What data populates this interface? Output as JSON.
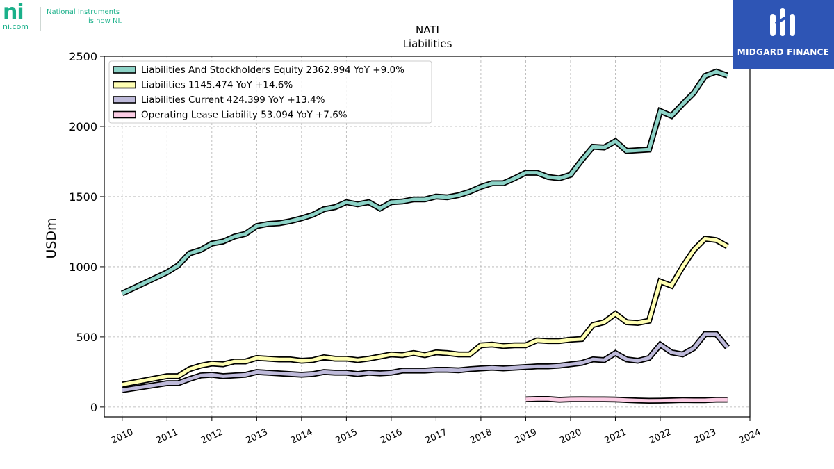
{
  "header_logo": {
    "mark": "ni",
    "domain": "ni.com",
    "tagline_line1": "National Instruments",
    "tagline_line2": "is now NI."
  },
  "brand_badge": {
    "name": "MIDGARD FINANCE",
    "color": "#2e55b5"
  },
  "chart_data": {
    "type": "line",
    "title": "NATI",
    "subtitle": "Liabilities",
    "ylabel": "USDm",
    "xlabel": "",
    "xlim": [
      2009.6,
      2024.0
    ],
    "ylim": [
      -70,
      2500
    ],
    "yticks": [
      0,
      500,
      1000,
      1500,
      2000,
      2500
    ],
    "xticks": [
      2010,
      2011,
      2012,
      2013,
      2014,
      2015,
      2016,
      2017,
      2018,
      2019,
      2020,
      2021,
      2022,
      2023,
      2024
    ],
    "grid": true,
    "legend_position": "top-left",
    "series": [
      {
        "name": "Liabilities And Stockholders Equity",
        "legend": "Liabilities And Stockholders Equity  2362.994 YoY +9.0%",
        "color": "#8dd3c7",
        "points": [
          [
            2010.0,
            810
          ],
          [
            2011.0,
            960
          ],
          [
            2011.25,
            1010
          ],
          [
            2011.5,
            1095
          ],
          [
            2011.75,
            1120
          ],
          [
            2012.0,
            1165
          ],
          [
            2012.25,
            1180
          ],
          [
            2012.5,
            1215
          ],
          [
            2012.75,
            1235
          ],
          [
            2013.0,
            1290
          ],
          [
            2013.25,
            1305
          ],
          [
            2013.5,
            1310
          ],
          [
            2013.75,
            1325
          ],
          [
            2014.0,
            1345
          ],
          [
            2014.25,
            1370
          ],
          [
            2014.5,
            1410
          ],
          [
            2014.75,
            1425
          ],
          [
            2015.0,
            1460
          ],
          [
            2015.25,
            1445
          ],
          [
            2015.5,
            1460
          ],
          [
            2015.75,
            1415
          ],
          [
            2016.0,
            1460
          ],
          [
            2016.25,
            1465
          ],
          [
            2016.5,
            1480
          ],
          [
            2016.75,
            1480
          ],
          [
            2017.0,
            1500
          ],
          [
            2017.25,
            1495
          ],
          [
            2017.5,
            1510
          ],
          [
            2017.75,
            1535
          ],
          [
            2018.0,
            1570
          ],
          [
            2018.25,
            1595
          ],
          [
            2018.5,
            1595
          ],
          [
            2018.75,
            1630
          ],
          [
            2019.0,
            1670
          ],
          [
            2019.25,
            1670
          ],
          [
            2019.5,
            1640
          ],
          [
            2019.75,
            1630
          ],
          [
            2020.0,
            1655
          ],
          [
            2020.25,
            1760
          ],
          [
            2020.5,
            1855
          ],
          [
            2020.75,
            1850
          ],
          [
            2021.0,
            1895
          ],
          [
            2021.25,
            1825
          ],
          [
            2021.5,
            1830
          ],
          [
            2021.75,
            1835
          ],
          [
            2022.0,
            2110
          ],
          [
            2022.25,
            2075
          ],
          [
            2022.5,
            2160
          ],
          [
            2022.75,
            2240
          ],
          [
            2023.0,
            2360
          ],
          [
            2023.25,
            2390
          ],
          [
            2023.5,
            2363
          ]
        ]
      },
      {
        "name": "Liabilities",
        "legend": "Liabilities  1145.474 YoY +14.6%",
        "color": "#ffffb3",
        "points": [
          [
            2010.0,
            160
          ],
          [
            2011.0,
            220
          ],
          [
            2011.25,
            220
          ],
          [
            2011.5,
            270
          ],
          [
            2011.75,
            295
          ],
          [
            2012.0,
            310
          ],
          [
            2012.25,
            305
          ],
          [
            2012.5,
            325
          ],
          [
            2012.75,
            325
          ],
          [
            2013.0,
            350
          ],
          [
            2013.25,
            345
          ],
          [
            2013.5,
            340
          ],
          [
            2013.75,
            340
          ],
          [
            2014.0,
            330
          ],
          [
            2014.25,
            335
          ],
          [
            2014.5,
            355
          ],
          [
            2014.75,
            345
          ],
          [
            2015.0,
            345
          ],
          [
            2015.25,
            335
          ],
          [
            2015.5,
            345
          ],
          [
            2015.75,
            360
          ],
          [
            2016.0,
            375
          ],
          [
            2016.25,
            370
          ],
          [
            2016.5,
            385
          ],
          [
            2016.75,
            370
          ],
          [
            2017.0,
            390
          ],
          [
            2017.25,
            385
          ],
          [
            2017.5,
            375
          ],
          [
            2017.75,
            375
          ],
          [
            2018.0,
            440
          ],
          [
            2018.25,
            445
          ],
          [
            2018.5,
            435
          ],
          [
            2018.75,
            440
          ],
          [
            2019.0,
            440
          ],
          [
            2019.25,
            475
          ],
          [
            2019.5,
            470
          ],
          [
            2019.75,
            470
          ],
          [
            2020.0,
            480
          ],
          [
            2020.25,
            485
          ],
          [
            2020.5,
            585
          ],
          [
            2020.75,
            605
          ],
          [
            2021.0,
            665
          ],
          [
            2021.25,
            605
          ],
          [
            2021.5,
            600
          ],
          [
            2021.75,
            615
          ],
          [
            2022.0,
            895
          ],
          [
            2022.25,
            865
          ],
          [
            2022.5,
            1000
          ],
          [
            2022.75,
            1120
          ],
          [
            2023.0,
            1200
          ],
          [
            2023.25,
            1190
          ],
          [
            2023.5,
            1145
          ]
        ]
      },
      {
        "name": "Liabilities Current",
        "legend": "Liabilities Current  424.399 YoY +13.4%",
        "color": "#bebada",
        "points": [
          [
            2010.0,
            120
          ],
          [
            2011.0,
            170
          ],
          [
            2011.25,
            170
          ],
          [
            2011.5,
            200
          ],
          [
            2011.75,
            225
          ],
          [
            2012.0,
            230
          ],
          [
            2012.25,
            220
          ],
          [
            2012.5,
            225
          ],
          [
            2012.75,
            230
          ],
          [
            2013.0,
            250
          ],
          [
            2013.25,
            245
          ],
          [
            2013.5,
            240
          ],
          [
            2013.75,
            235
          ],
          [
            2014.0,
            230
          ],
          [
            2014.25,
            235
          ],
          [
            2014.5,
            250
          ],
          [
            2014.75,
            245
          ],
          [
            2015.0,
            245
          ],
          [
            2015.25,
            235
          ],
          [
            2015.5,
            245
          ],
          [
            2015.75,
            240
          ],
          [
            2016.0,
            245
          ],
          [
            2016.25,
            260
          ],
          [
            2016.5,
            260
          ],
          [
            2016.75,
            260
          ],
          [
            2017.0,
            265
          ],
          [
            2017.25,
            265
          ],
          [
            2017.5,
            262
          ],
          [
            2017.75,
            270
          ],
          [
            2018.0,
            275
          ],
          [
            2018.25,
            280
          ],
          [
            2018.5,
            275
          ],
          [
            2018.75,
            280
          ],
          [
            2019.0,
            285
          ],
          [
            2019.25,
            290
          ],
          [
            2019.5,
            290
          ],
          [
            2019.75,
            295
          ],
          [
            2020.0,
            305
          ],
          [
            2020.25,
            315
          ],
          [
            2020.5,
            340
          ],
          [
            2020.75,
            335
          ],
          [
            2021.0,
            385
          ],
          [
            2021.25,
            340
          ],
          [
            2021.5,
            330
          ],
          [
            2021.75,
            350
          ],
          [
            2022.0,
            445
          ],
          [
            2022.25,
            390
          ],
          [
            2022.5,
            375
          ],
          [
            2022.75,
            420
          ],
          [
            2023.0,
            520
          ],
          [
            2023.25,
            520
          ],
          [
            2023.5,
            424
          ]
        ]
      },
      {
        "name": "Operating Lease Liability",
        "legend": "Operating Lease Liability  53.094 YoY +7.6%",
        "color": "#fccde5",
        "points": [
          [
            2019.0,
            55
          ],
          [
            2019.25,
            58
          ],
          [
            2019.5,
            58
          ],
          [
            2019.75,
            52
          ],
          [
            2020.0,
            55
          ],
          [
            2020.25,
            56
          ],
          [
            2020.5,
            55
          ],
          [
            2020.75,
            55
          ],
          [
            2021.0,
            54
          ],
          [
            2021.25,
            50
          ],
          [
            2021.5,
            47
          ],
          [
            2021.75,
            45
          ],
          [
            2022.0,
            46
          ],
          [
            2022.25,
            48
          ],
          [
            2022.5,
            50
          ],
          [
            2022.75,
            49
          ],
          [
            2023.0,
            49
          ],
          [
            2023.25,
            53
          ],
          [
            2023.5,
            53
          ]
        ]
      }
    ]
  }
}
